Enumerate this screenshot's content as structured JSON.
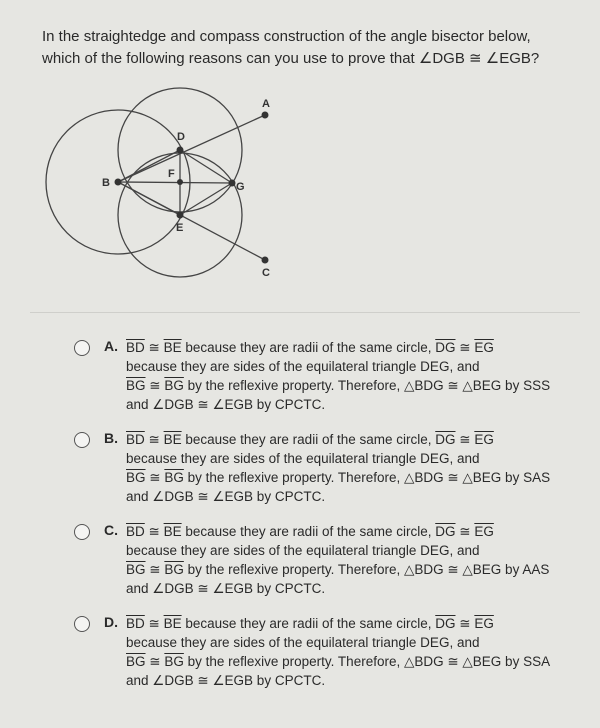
{
  "question": {
    "lines": [
      "In the straightedge and compass construction of the angle bisector below,",
      "which of the following reasons can you use to prove that ∠DGB ≅ ∠EGB?"
    ]
  },
  "diagram": {
    "points": [
      "A",
      "D",
      "B",
      "F",
      "G",
      "E",
      "C"
    ]
  },
  "options": [
    {
      "label": "A.",
      "lines": [
        [
          {
            "t": "BD",
            "over": true
          },
          " ≅ ",
          {
            "t": "BE",
            "over": true
          },
          " because they are radii of the same circle, ",
          {
            "t": "DG",
            "over": true
          },
          " ≅ ",
          {
            "t": "EG",
            "over": true
          }
        ],
        [
          "because they are sides of the equilateral triangle DEG, and"
        ],
        [
          {
            "t": "BG",
            "over": true
          },
          " ≅ ",
          {
            "t": "BG",
            "over": true
          },
          " by the reflexive property. Therefore, △BDG ≅ △BEG by SSS"
        ],
        [
          "and ∠DGB ≅ ∠EGB by CPCTC."
        ]
      ]
    },
    {
      "label": "B.",
      "lines": [
        [
          {
            "t": "BD",
            "over": true
          },
          " ≅ ",
          {
            "t": "BE",
            "over": true
          },
          " because they are radii of the same circle, ",
          {
            "t": "DG",
            "over": true
          },
          " ≅ ",
          {
            "t": "EG",
            "over": true
          }
        ],
        [
          "because they are sides of the equilateral triangle DEG, and"
        ],
        [
          {
            "t": "BG",
            "over": true
          },
          " ≅ ",
          {
            "t": "BG",
            "over": true
          },
          " by the reflexive property. Therefore, △BDG ≅ △BEG by SAS"
        ],
        [
          "and ∠DGB ≅ ∠EGB by CPCTC."
        ]
      ]
    },
    {
      "label": "C.",
      "lines": [
        [
          {
            "t": "BD",
            "over": true
          },
          " ≅ ",
          {
            "t": "BE",
            "over": true
          },
          " because they are radii of the same circle, ",
          {
            "t": "DG",
            "over": true
          },
          " ≅ ",
          {
            "t": "EG",
            "over": true
          }
        ],
        [
          "because they are sides of the equilateral triangle DEG, and"
        ],
        [
          {
            "t": "BG",
            "over": true
          },
          " ≅ ",
          {
            "t": "BG",
            "over": true
          },
          " by the reflexive property. Therefore, △BDG ≅ △BEG by AAS"
        ],
        [
          "and ∠DGB ≅ ∠EGB by CPCTC."
        ]
      ]
    },
    {
      "label": "D.",
      "lines": [
        [
          {
            "t": "BD",
            "over": true
          },
          " ≅ ",
          {
            "t": "BE",
            "over": true
          },
          " because they are radii of the same circle, ",
          {
            "t": "DG",
            "over": true
          },
          " ≅ ",
          {
            "t": "EG",
            "over": true
          }
        ],
        [
          "because they are sides of the equilateral triangle DEG, and"
        ],
        [
          {
            "t": "BG",
            "over": true
          },
          " ≅ ",
          {
            "t": "BG",
            "over": true
          },
          " by the reflexive property. Therefore, △BDG ≅ △BEG by SSA"
        ],
        [
          "and ∠DGB ≅ ∠EGB by CPCTC."
        ]
      ]
    }
  ]
}
